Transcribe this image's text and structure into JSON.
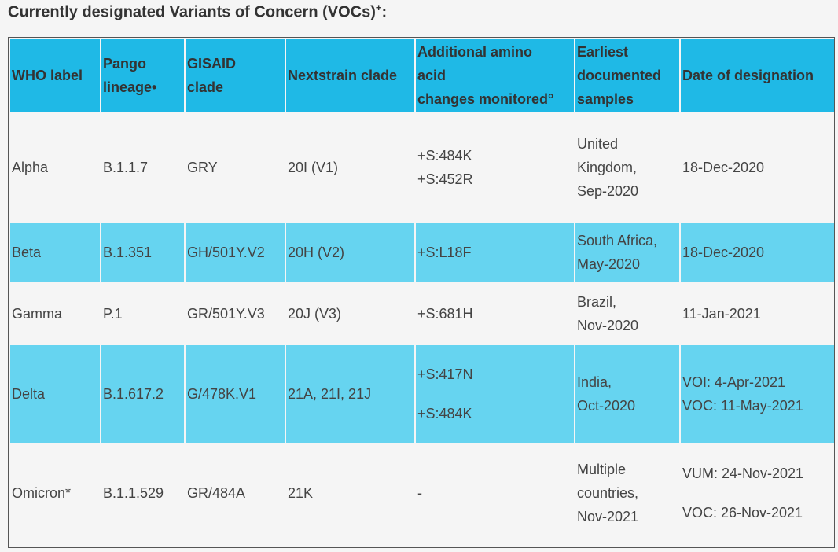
{
  "title": {
    "text": "Currently designated Variants of Concern (VOCs)",
    "sup": "+",
    "suffix": ":"
  },
  "headers": [
    [
      "WHO label"
    ],
    [
      "Pango",
      "lineage•"
    ],
    [
      "GISAID",
      "clade"
    ],
    [
      "Nextstrain clade"
    ],
    [
      "Additional amino",
      "acid",
      "changes monitored°"
    ],
    [
      "Earliest",
      "documented",
      "samples"
    ],
    [
      "Date of designation"
    ]
  ],
  "rows": [
    {
      "who": "Alpha",
      "pango": "B.1.1.7",
      "gisaid": "GRY",
      "nextstrain": "20I (V1)",
      "amino": [
        "+S:484K",
        "+S:452R"
      ],
      "earliest": [
        "United",
        "Kingdom,",
        "Sep-2020"
      ],
      "date": [
        "18-Dec-2020"
      ]
    },
    {
      "who": "Beta",
      "pango": "B.1.351",
      "gisaid": "GH/501Y.V2",
      "nextstrain": "20H (V2)",
      "amino": [
        "+S:L18F"
      ],
      "earliest": [
        "South Africa,",
        "May-2020"
      ],
      "date": [
        "18-Dec-2020"
      ]
    },
    {
      "who": "Gamma",
      "pango": "P.1",
      "gisaid": "GR/501Y.V3",
      "nextstrain": "20J (V3)",
      "amino": [
        "+S:681H"
      ],
      "earliest": [
        "Brazil,",
        "Nov-2020"
      ],
      "date": [
        "11-Jan-2021"
      ]
    },
    {
      "who": "Delta",
      "pango": "B.1.617.2",
      "gisaid": "G/478K.V1",
      "nextstrain": "21A, 21I, 21J",
      "amino": [
        "+S:417N",
        "+S:484K"
      ],
      "earliest": [
        "India,",
        "Oct-2020"
      ],
      "date": [
        "VOI: 4-Apr-2021",
        "VOC: 11-May-2021"
      ]
    },
    {
      "who": "Omicron*",
      "pango": "B.1.1.529",
      "gisaid": "GR/484A",
      "nextstrain": "21K",
      "amino": [
        "-"
      ],
      "earliest": [
        "Multiple",
        "countries,",
        "Nov-2021"
      ],
      "date": [
        "VUM: 24-Nov-2021",
        "VOC: 26-Nov-2021"
      ]
    }
  ]
}
